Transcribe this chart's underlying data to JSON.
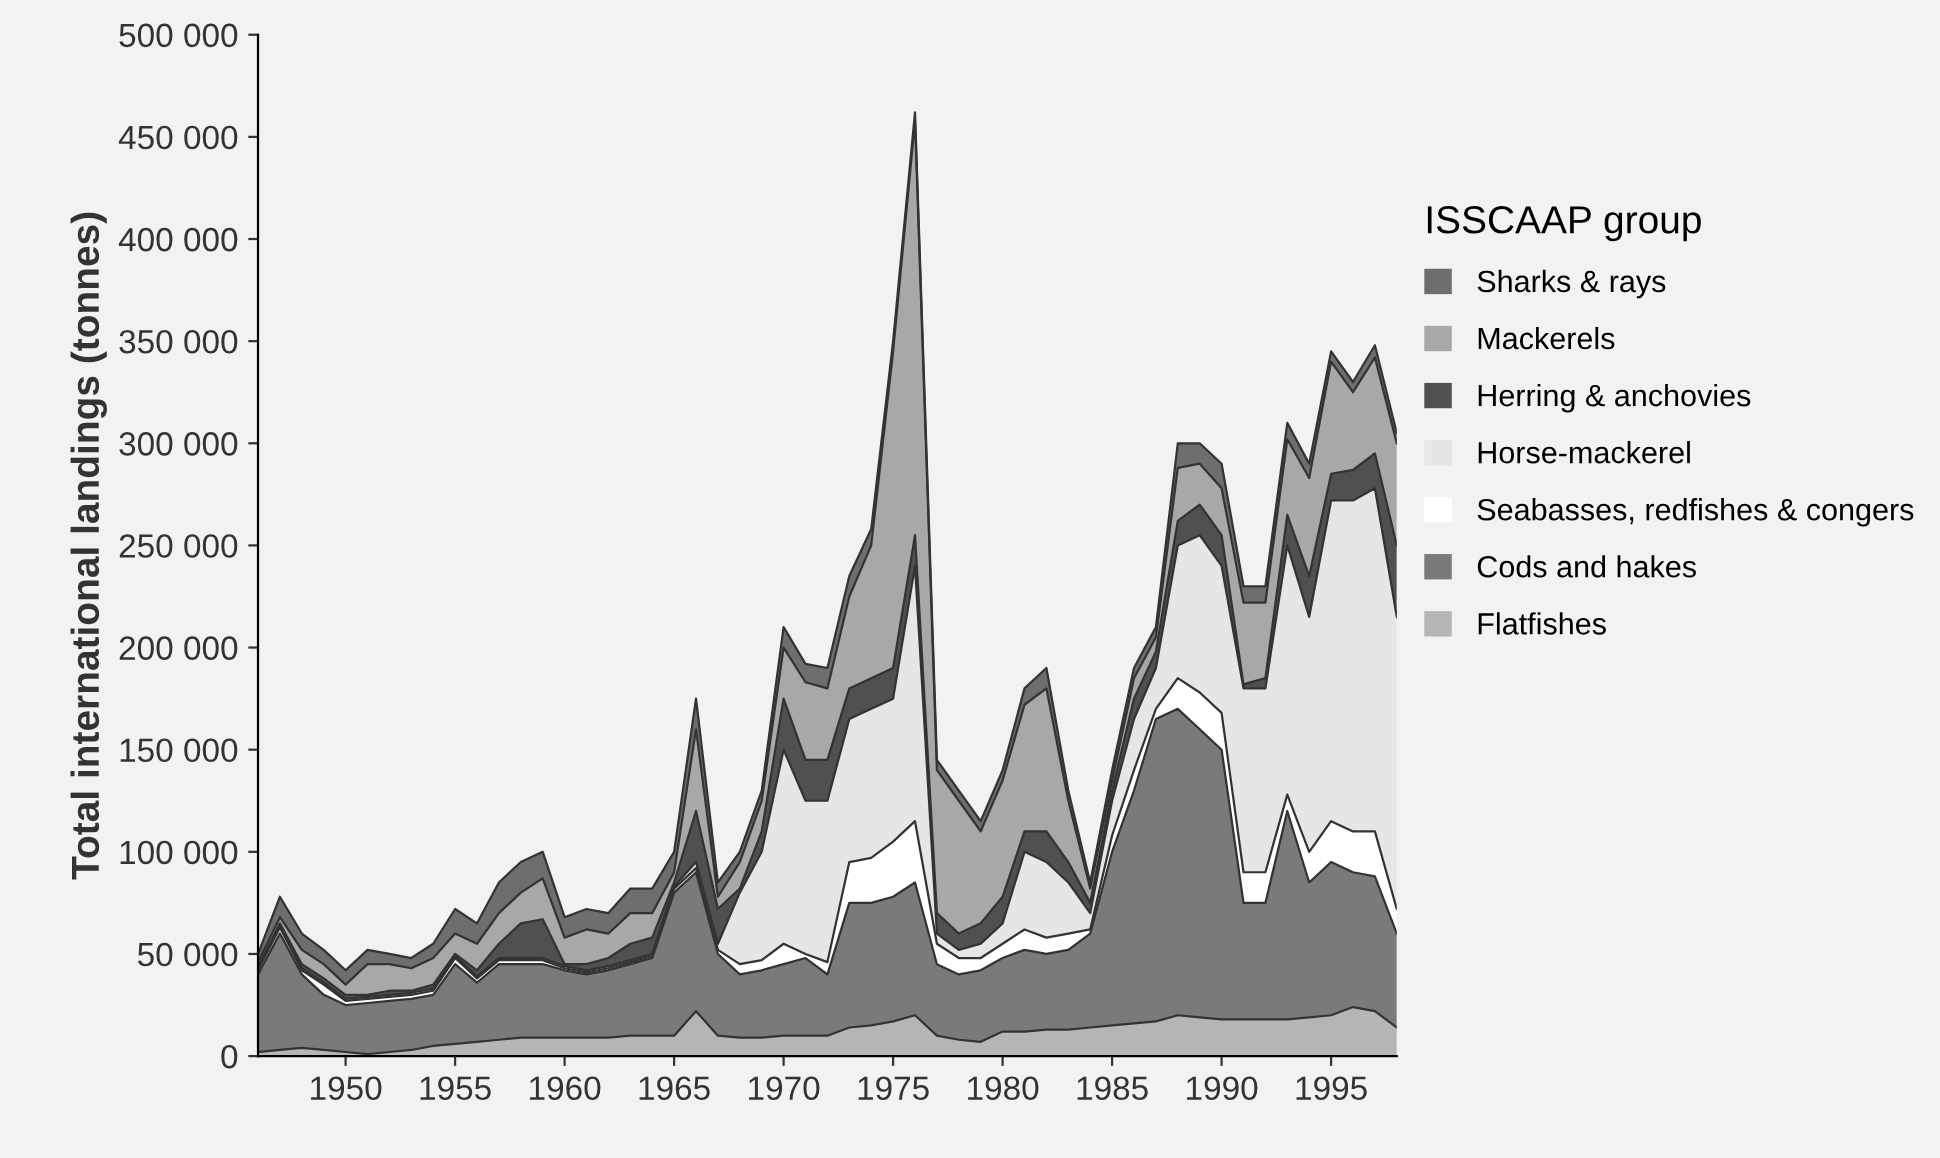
{
  "chart_data": {
    "type": "area",
    "stacked": true,
    "ylabel": "Total international landings (tonnes)",
    "legend_title": "ISSCAAP group",
    "legend": "right",
    "grid": false,
    "x": [
      1946,
      1947,
      1948,
      1949,
      1950,
      1951,
      1952,
      1953,
      1954,
      1955,
      1956,
      1957,
      1958,
      1959,
      1960,
      1961,
      1962,
      1963,
      1964,
      1965,
      1966,
      1967,
      1968,
      1969,
      1970,
      1971,
      1972,
      1973,
      1974,
      1975,
      1976,
      1977,
      1978,
      1979,
      1980,
      1981,
      1982,
      1983,
      1984,
      1985,
      1986,
      1987,
      1988,
      1989,
      1990,
      1991,
      1992,
      1993,
      1994,
      1995,
      1996,
      1997,
      1998
    ],
    "xlim": [
      1946,
      1998
    ],
    "xticks": [
      1950,
      1955,
      1960,
      1965,
      1970,
      1975,
      1980,
      1985,
      1990,
      1995
    ],
    "ylim": [
      0,
      500000
    ],
    "yticks": [
      {
        "value": 0,
        "label": "0"
      },
      {
        "value": 50000,
        "label": "50 000"
      },
      {
        "value": 100000,
        "label": "100 000"
      },
      {
        "value": 150000,
        "label": "150 000"
      },
      {
        "value": 200000,
        "label": "200 000"
      },
      {
        "value": 250000,
        "label": "250 000"
      },
      {
        "value": 300000,
        "label": "300 000"
      },
      {
        "value": 350000,
        "label": "350 000"
      },
      {
        "value": 400000,
        "label": "400 000"
      },
      {
        "value": 450000,
        "label": "450 000"
      },
      {
        "value": 500000,
        "label": "500 000"
      }
    ],
    "series": [
      {
        "name": "Flatfishes",
        "color": "#b5b5b5",
        "values": [
          2000,
          3000,
          4000,
          3000,
          2000,
          1000,
          2000,
          3000,
          5000,
          6000,
          7000,
          8000,
          9000,
          9000,
          9000,
          9000,
          9000,
          10000,
          10000,
          10000,
          22000,
          10000,
          9000,
          9000,
          10000,
          10000,
          10000,
          14000,
          15000,
          17000,
          20000,
          10000,
          8000,
          7000,
          12000,
          12000,
          13000,
          13000,
          14000,
          15000,
          16000,
          17000,
          20000,
          19000,
          18000,
          18000,
          18000,
          18000,
          19000,
          20000,
          24000,
          22000,
          14000
        ]
      },
      {
        "name": "Cods and hakes",
        "color": "#7a7a7a",
        "values": [
          38000,
          57000,
          36000,
          27000,
          23000,
          25000,
          25000,
          25000,
          25000,
          39000,
          29000,
          37000,
          36000,
          36000,
          33000,
          31000,
          33000,
          35000,
          38000,
          70000,
          68000,
          40000,
          31000,
          33000,
          35000,
          38000,
          30000,
          61000,
          60000,
          61000,
          65000,
          35000,
          32000,
          35000,
          36000,
          40000,
          37000,
          39000,
          46000,
          85000,
          114000,
          148000,
          150000,
          141000,
          132000,
          57000,
          57000,
          102000,
          66000,
          75000,
          66000,
          66000,
          46000
        ]
      },
      {
        "name": "Seabasses, redfishes & congers",
        "color": "#ffffff",
        "values": [
          2000,
          3000,
          2000,
          5000,
          2000,
          2000,
          2000,
          2000,
          2000,
          3000,
          2000,
          2000,
          2000,
          2000,
          1000,
          1000,
          1000,
          1000,
          1000,
          2000,
          2000,
          2000,
          5000,
          5000,
          10000,
          2000,
          6000,
          20000,
          22000,
          27000,
          30000,
          10000,
          8000,
          6000,
          7000,
          10000,
          8000,
          8000,
          2000,
          8000,
          10000,
          5000,
          15000,
          18000,
          18000,
          15000,
          15000,
          8000,
          15000,
          20000,
          20000,
          22000,
          12000
        ]
      },
      {
        "name": "Horse-mackerel",
        "color": "#e6e6e6",
        "values": [
          1000,
          1000,
          1000,
          1000,
          1000,
          1000,
          1000,
          1000,
          1000,
          1000,
          1000,
          1000,
          1000,
          1000,
          1000,
          1000,
          1000,
          1000,
          1000,
          1000,
          3000,
          3000,
          35000,
          53000,
          95000,
          75000,
          79000,
          70000,
          73000,
          70000,
          125000,
          5000,
          4000,
          7000,
          10000,
          38000,
          37000,
          25000,
          8000,
          17000,
          25000,
          20000,
          65000,
          77000,
          72000,
          90000,
          90000,
          122000,
          115000,
          157000,
          162000,
          168000,
          143000
        ]
      },
      {
        "name": "Herring & anchovies",
        "color": "#505050",
        "values": [
          1000,
          1000,
          2000,
          2000,
          2000,
          1000,
          2000,
          1000,
          2000,
          1000,
          3000,
          7000,
          17000,
          19000,
          1000,
          3000,
          4000,
          8000,
          8000,
          2000,
          25000,
          17000,
          2000,
          10000,
          25000,
          20000,
          20000,
          15000,
          15000,
          15000,
          15000,
          10000,
          8000,
          10000,
          13000,
          10000,
          15000,
          10000,
          5000,
          5000,
          10000,
          8000,
          12000,
          15000,
          15000,
          2000,
          5000,
          15000,
          20000,
          13000,
          15000,
          17000,
          35000
        ]
      },
      {
        "name": "Mackerels",
        "color": "#a8a8a8",
        "values": [
          2000,
          3000,
          7000,
          7000,
          5000,
          15000,
          13000,
          11000,
          13000,
          10000,
          13000,
          15000,
          15000,
          20000,
          13000,
          17000,
          12000,
          15000,
          12000,
          5000,
          40000,
          6000,
          13000,
          15000,
          25000,
          38000,
          35000,
          45000,
          65000,
          155000,
          203000,
          70000,
          65000,
          45000,
          57000,
          62000,
          70000,
          30000,
          7000,
          5000,
          10000,
          7000,
          26000,
          20000,
          23000,
          40000,
          37000,
          37000,
          48000,
          55000,
          38000,
          47000,
          50000
        ]
      },
      {
        "name": "Sharks & rays",
        "color": "#6e6e6e",
        "values": [
          4000,
          10000,
          8000,
          7000,
          7000,
          7000,
          5000,
          5000,
          7000,
          12000,
          10000,
          15000,
          15000,
          13000,
          10000,
          10000,
          10000,
          12000,
          12000,
          10000,
          15000,
          7000,
          5000,
          5000,
          10000,
          9000,
          10000,
          10000,
          8000,
          5000,
          4000,
          5000,
          5000,
          5000,
          5000,
          8000,
          10000,
          5000,
          3000,
          5000,
          5000,
          5000,
          12000,
          10000,
          12000,
          8000,
          8000,
          8000,
          7000,
          5000,
          5000,
          6000,
          5000
        ]
      }
    ]
  }
}
